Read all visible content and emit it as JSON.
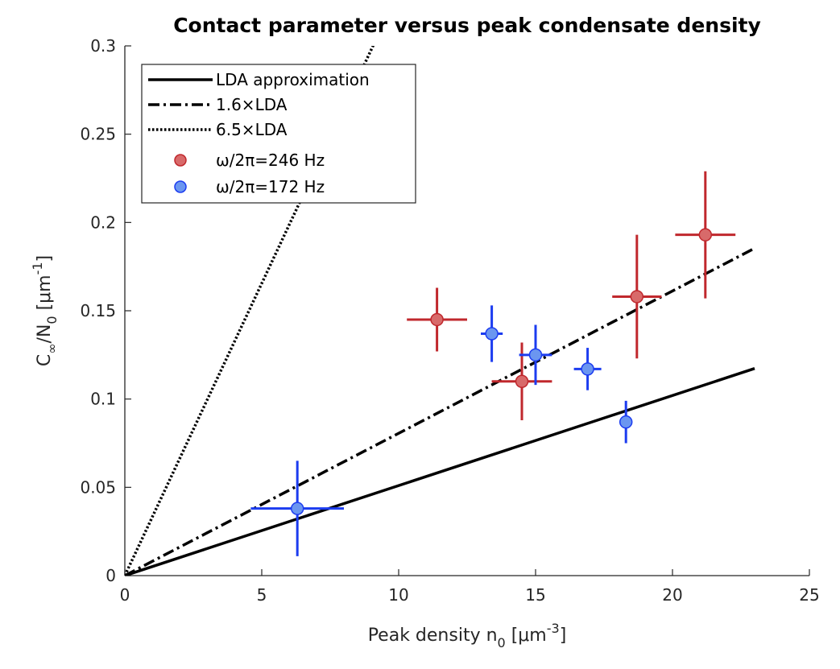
{
  "chart_data": {
    "type": "scatter",
    "title": "Contact parameter versus peak condensate density",
    "xlabel": "Peak density n",
    "xlabel_sub": "0",
    "xlabel_unit_open": " [μm",
    "xlabel_sup": "-3",
    "xlabel_unit_close": "]",
    "ylabel": "C",
    "ylabel_sub1": "∞",
    "ylabel_mid": "/N",
    "ylabel_sub2": "0",
    "ylabel_unit_open": " [μm",
    "ylabel_sup": "-1",
    "ylabel_unit_close": "]",
    "xlim": [
      0,
      25
    ],
    "ylim": [
      0,
      0.3
    ],
    "xticks": [
      0,
      5,
      10,
      15,
      20,
      25
    ],
    "xtick_labels": [
      "0",
      "5",
      "10",
      "15",
      "20",
      "25"
    ],
    "yticks": [
      0,
      0.05,
      0.1,
      0.15,
      0.2,
      0.25,
      0.3
    ],
    "ytick_labels": [
      "0",
      "0.05",
      "0.1",
      "0.15",
      "0.2",
      "0.25",
      "0.3"
    ],
    "grid": false,
    "legend_position": "top-left",
    "lines": [
      {
        "name": "LDA approximation",
        "style": "solid",
        "slope": 0.0051,
        "x_range": [
          0,
          23
        ],
        "color": "#000000"
      },
      {
        "name": "1.6×LDA",
        "style": "dashdot",
        "slope": 0.00806,
        "x_range": [
          0,
          23
        ],
        "color": "#000000"
      },
      {
        "name": "6.5×LDA",
        "style": "dotted",
        "slope": 0.0331,
        "x_range": [
          0,
          23
        ],
        "color": "#000000"
      }
    ],
    "series": [
      {
        "name": "ω/2π=246 Hz",
        "color": "#c0282d",
        "fill": "#d86a6a",
        "points": [
          {
            "x": 11.4,
            "y": 0.145,
            "xerr": 1.1,
            "yerr": 0.018
          },
          {
            "x": 14.5,
            "y": 0.11,
            "xerr": 1.1,
            "yerr": 0.022
          },
          {
            "x": 18.7,
            "y": 0.158,
            "xerr": 0.9,
            "yerr": 0.035
          },
          {
            "x": 21.2,
            "y": 0.193,
            "xerr": 1.1,
            "yerr": 0.036
          }
        ]
      },
      {
        "name": "ω/2π=172 Hz",
        "color": "#1c3cf0",
        "fill": "#6b96f0",
        "points": [
          {
            "x": 6.3,
            "y": 0.038,
            "xerr": 1.7,
            "yerr": 0.027
          },
          {
            "x": 13.4,
            "y": 0.137,
            "xerr": 0.4,
            "yerr": 0.016
          },
          {
            "x": 15.0,
            "y": 0.125,
            "xerr": 0.6,
            "yerr": 0.017
          },
          {
            "x": 16.9,
            "y": 0.117,
            "xerr": 0.5,
            "yerr": 0.012
          },
          {
            "x": 18.3,
            "y": 0.087,
            "xerr": 0.2,
            "yerr": 0.012
          }
        ]
      }
    ]
  }
}
